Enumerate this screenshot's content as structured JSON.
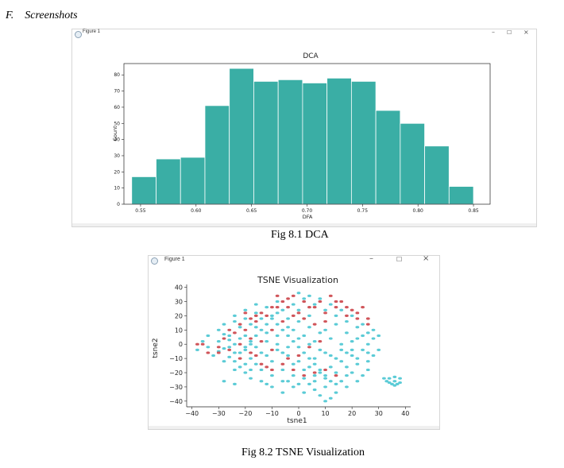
{
  "section": {
    "number": "F.",
    "title": "Screenshots"
  },
  "figures": [
    {
      "window_title": "Figure 1",
      "controls": {
        "minimize": "–",
        "maximize": "☐",
        "close": "×"
      },
      "caption": "Fig 8.1 DCA"
    },
    {
      "window_title": "Figure 1",
      "controls": {
        "minimize": "–",
        "maximize": "☐",
        "close": "×"
      },
      "caption": "Fig 8.2 TSNE Visualization"
    }
  ],
  "colors": {
    "bar": "#3aaea5",
    "cluster_a": "#5bcbd6",
    "cluster_b": "#d0555a"
  },
  "chart_data": [
    {
      "type": "bar",
      "title": "DCA",
      "xlabel": "DFA",
      "ylabel": "Count",
      "bin_edges": [
        0.542,
        0.564,
        0.586,
        0.608,
        0.63,
        0.652,
        0.674,
        0.696,
        0.718,
        0.74,
        0.762,
        0.784,
        0.806,
        0.828,
        0.85
      ],
      "values": [
        17,
        28,
        29,
        61,
        84,
        76,
        77,
        75,
        78,
        76,
        58,
        50,
        36,
        11
      ],
      "xlim": [
        0.535,
        0.865
      ],
      "ylim": [
        0,
        87
      ],
      "xticks": [
        "0.55",
        "0.60",
        "0.65",
        "0.70",
        "0.75",
        "0.80",
        "0.85"
      ],
      "yticks": [
        "0",
        "10",
        "20",
        "30",
        "40",
        "50",
        "60",
        "70",
        "80"
      ],
      "grid": false
    },
    {
      "type": "scatter",
      "title": "TSNE Visualization",
      "xlabel": "tsne1",
      "ylabel": "tsne2",
      "xlim": [
        -42,
        42
      ],
      "ylim": [
        -44,
        42
      ],
      "xticks": [
        "−40",
        "−30",
        "−20",
        "−10",
        "0",
        "10",
        "20",
        "30",
        "40"
      ],
      "yticks": [
        "40",
        "30",
        "20",
        "10",
        "0",
        "−10",
        "−20",
        "−30",
        "−40"
      ],
      "grid": false,
      "series": [
        {
          "color": "#5bcbd6",
          "points": [
            [
              -30,
              10
            ],
            [
              -28,
              7
            ],
            [
              -26,
              3
            ],
            [
              -28,
              -3
            ],
            [
              -30,
              -5
            ],
            [
              -26,
              -9
            ],
            [
              -24,
              -12
            ],
            [
              -22,
              -6
            ],
            [
              -20,
              -2
            ],
            [
              -18,
              2
            ],
            [
              -16,
              6
            ],
            [
              -14,
              10
            ],
            [
              -12,
              14
            ],
            [
              -10,
              18
            ],
            [
              -8,
              14
            ],
            [
              -6,
              10
            ],
            [
              -4,
              6
            ],
            [
              -2,
              2
            ],
            [
              0,
              -2
            ],
            [
              2,
              -6
            ],
            [
              4,
              -10
            ],
            [
              6,
              -14
            ],
            [
              8,
              -18
            ],
            [
              10,
              -22
            ],
            [
              12,
              -26
            ],
            [
              14,
              -28
            ],
            [
              10,
              -30
            ],
            [
              6,
              -32
            ],
            [
              2,
              -34
            ],
            [
              -2,
              -30
            ],
            [
              -6,
              -26
            ],
            [
              -10,
              -22
            ],
            [
              -14,
              -18
            ],
            [
              -16,
              -14
            ],
            [
              -18,
              -10
            ],
            [
              -20,
              -14
            ],
            [
              -22,
              -16
            ],
            [
              -24,
              -18
            ],
            [
              -18,
              -18
            ],
            [
              -12,
              -8
            ],
            [
              -8,
              -4
            ],
            [
              -4,
              -8
            ],
            [
              0,
              -12
            ],
            [
              4,
              -16
            ],
            [
              8,
              -20
            ],
            [
              12,
              -16
            ],
            [
              16,
              -12
            ],
            [
              20,
              -8
            ],
            [
              24,
              -4
            ],
            [
              26,
              0
            ],
            [
              28,
              4
            ],
            [
              26,
              8
            ],
            [
              22,
              12
            ],
            [
              18,
              16
            ],
            [
              14,
              20
            ],
            [
              10,
              24
            ],
            [
              6,
              28
            ],
            [
              2,
              32
            ],
            [
              -2,
              28
            ],
            [
              -6,
              24
            ],
            [
              -10,
              20
            ],
            [
              -14,
              18
            ],
            [
              -18,
              14
            ],
            [
              -22,
              12
            ],
            [
              -26,
              6
            ],
            [
              -24,
              0
            ],
            [
              -20,
              -4
            ],
            [
              -16,
              -2
            ],
            [
              -12,
              2
            ],
            [
              -8,
              6
            ],
            [
              -4,
              12
            ],
            [
              0,
              16
            ],
            [
              4,
              12
            ],
            [
              8,
              8
            ],
            [
              12,
              4
            ],
            [
              16,
              0
            ],
            [
              20,
              -4
            ],
            [
              18,
              -16
            ],
            [
              14,
              -20
            ],
            [
              10,
              -24
            ],
            [
              6,
              -22
            ],
            [
              2,
              -18
            ],
            [
              -2,
              -14
            ],
            [
              -6,
              -18
            ],
            [
              -10,
              -12
            ],
            [
              -14,
              -6
            ],
            [
              -18,
              0
            ],
            [
              -22,
              4
            ],
            [
              -26,
              -2
            ],
            [
              -30,
              2
            ],
            [
              -34,
              -2
            ],
            [
              -32,
              -8
            ],
            [
              -28,
              -12
            ],
            [
              -24,
              -6
            ],
            [
              -20,
              6
            ],
            [
              -16,
              12
            ],
            [
              -12,
              8
            ],
            [
              -8,
              0
            ],
            [
              -4,
              -2
            ],
            [
              0,
              4
            ],
            [
              4,
              0
            ],
            [
              8,
              -4
            ],
            [
              12,
              -8
            ],
            [
              16,
              -4
            ],
            [
              20,
              2
            ],
            [
              24,
              6
            ],
            [
              28,
              10
            ],
            [
              24,
              14
            ],
            [
              20,
              20
            ],
            [
              16,
              24
            ],
            [
              12,
              28
            ],
            [
              8,
              32
            ],
            [
              4,
              20
            ],
            [
              0,
              24
            ],
            [
              -4,
              18
            ],
            [
              -8,
              22
            ],
            [
              -12,
              26
            ],
            [
              -16,
              22
            ],
            [
              -20,
              18
            ],
            [
              -24,
              16
            ],
            [
              2,
              -24
            ],
            [
              -2,
              -22
            ],
            [
              6,
              -26
            ],
            [
              -4,
              -26
            ],
            [
              8,
              -36
            ],
            [
              10,
              -40
            ],
            [
              12,
              -38
            ],
            [
              14,
              -34
            ],
            [
              18,
              -30
            ],
            [
              22,
              -26
            ],
            [
              24,
              -22
            ],
            [
              26,
              -18
            ],
            [
              22,
              -14
            ],
            [
              18,
              -22
            ],
            [
              16,
              -26
            ],
            [
              20,
              -20
            ],
            [
              28,
              -8
            ],
            [
              30,
              -4
            ],
            [
              26,
              -12
            ],
            [
              -6,
              -34
            ],
            [
              -10,
              -30
            ],
            [
              -14,
              -26
            ],
            [
              -18,
              -24
            ],
            [
              -28,
              -26
            ],
            [
              -24,
              -28
            ],
            [
              34,
              -24
            ],
            [
              36,
              -26
            ],
            [
              38,
              -24
            ],
            [
              35,
              -28
            ],
            [
              37,
              -28
            ],
            [
              33,
              -26
            ],
            [
              36,
              -23
            ],
            [
              38,
              -27
            ],
            [
              34,
              -27
            ],
            [
              32,
              -24
            ],
            [
              36,
              -29
            ],
            [
              -34,
              6
            ],
            [
              -36,
              2
            ],
            [
              -38,
              -4
            ],
            [
              -20,
              -20
            ],
            [
              -12,
              -28
            ],
            [
              0,
              -28
            ],
            [
              4,
              -28
            ],
            [
              -6,
              -6
            ],
            [
              6,
              2
            ],
            [
              10,
              10
            ],
            [
              14,
              14
            ],
            [
              18,
              8
            ],
            [
              22,
              4
            ],
            [
              26,
              -6
            ],
            [
              30,
              6
            ],
            [
              -28,
              14
            ],
            [
              -24,
              20
            ],
            [
              -20,
              24
            ],
            [
              -16,
              28
            ],
            [
              -8,
              30
            ],
            [
              0,
              36
            ],
            [
              4,
              34
            ],
            [
              -2,
              10
            ],
            [
              2,
              6
            ],
            [
              6,
              -10
            ],
            [
              10,
              -6
            ],
            [
              14,
              -10
            ],
            [
              18,
              -6
            ],
            [
              22,
              -10
            ]
          ]
        },
        {
          "color": "#d0555a",
          "points": [
            [
              -36,
              0
            ],
            [
              -38,
              0
            ],
            [
              -34,
              -6
            ],
            [
              -30,
              -2
            ],
            [
              -26,
              10
            ],
            [
              -22,
              14
            ],
            [
              -18,
              18
            ],
            [
              -14,
              22
            ],
            [
              -10,
              26
            ],
            [
              -6,
              30
            ],
            [
              -2,
              34
            ],
            [
              2,
              30
            ],
            [
              6,
              26
            ],
            [
              10,
              22
            ],
            [
              14,
              30
            ],
            [
              18,
              26
            ],
            [
              22,
              22
            ],
            [
              26,
              18
            ],
            [
              12,
              34
            ],
            [
              8,
              30
            ],
            [
              4,
              26
            ],
            [
              0,
              22
            ],
            [
              -4,
              26
            ],
            [
              -8,
              26
            ],
            [
              -12,
              20
            ],
            [
              -16,
              16
            ],
            [
              -20,
              10
            ],
            [
              -24,
              8
            ],
            [
              -28,
              4
            ],
            [
              -22,
              0
            ],
            [
              -18,
              -6
            ],
            [
              -14,
              -14
            ],
            [
              -10,
              -18
            ],
            [
              -6,
              -14
            ],
            [
              -2,
              -18
            ],
            [
              2,
              -22
            ],
            [
              6,
              -20
            ],
            [
              10,
              -18
            ],
            [
              14,
              -22
            ],
            [
              -12,
              -16
            ],
            [
              -4,
              -10
            ],
            [
              0,
              -8
            ],
            [
              14,
              26
            ],
            [
              20,
              24
            ],
            [
              24,
              26
            ],
            [
              16,
              30
            ],
            [
              -20,
              22
            ],
            [
              -16,
              20
            ],
            [
              -8,
              34
            ],
            [
              -4,
              32
            ],
            [
              22,
              18
            ],
            [
              26,
              14
            ],
            [
              18,
              20
            ],
            [
              -26,
              -4
            ],
            [
              -30,
              -6
            ],
            [
              -10,
              10
            ],
            [
              -6,
              16
            ],
            [
              -2,
              20
            ],
            [
              2,
              18
            ],
            [
              6,
              14
            ],
            [
              10,
              16
            ],
            [
              -14,
              2
            ],
            [
              -18,
              4
            ],
            [
              -10,
              -4
            ],
            [
              4,
              -2
            ],
            [
              8,
              2
            ],
            [
              -22,
              -10
            ],
            [
              -16,
              -8
            ]
          ]
        }
      ]
    }
  ]
}
